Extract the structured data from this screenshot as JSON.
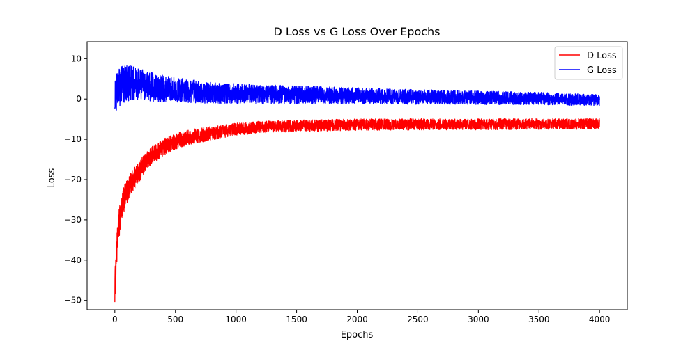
{
  "chart_data": {
    "type": "line",
    "title": "D Loss vs G Loss Over Epochs",
    "xlabel": "Epochs",
    "ylabel": "Loss",
    "xlim": [
      -229,
      4229
    ],
    "ylim": [
      -52.3,
      14.2
    ],
    "x_ticks": [
      0,
      500,
      1000,
      1500,
      2000,
      2500,
      3000,
      3500,
      4000
    ],
    "x_tick_labels": [
      "0",
      "500",
      "1000",
      "1500",
      "2000",
      "2500",
      "3000",
      "3500",
      "4000"
    ],
    "y_ticks": [
      10,
      0,
      -10,
      -20,
      -30,
      -40,
      -50
    ],
    "y_tick_labels": [
      "10",
      "0",
      "−10",
      "−20",
      "−30",
      "−40",
      "−50"
    ],
    "grid": false,
    "legend_position": "top-right",
    "epochs_range": [
      0,
      4000
    ],
    "series": [
      {
        "name": "D Loss",
        "color": "#ff0000",
        "anchors_x": [
          0,
          5,
          10,
          20,
          30,
          50,
          75,
          100,
          150,
          200,
          250,
          300,
          400,
          500,
          600,
          700,
          800,
          900,
          1000,
          1200,
          1500,
          2000,
          2500,
          3000,
          3500,
          4000
        ],
        "anchors_y": [
          -47,
          -44,
          -40,
          -36,
          -32,
          -28,
          -25,
          -23,
          -20,
          -18,
          -16,
          -14,
          -12,
          -10.5,
          -9.5,
          -9,
          -8.5,
          -8,
          -7.5,
          -7,
          -6.7,
          -6.4,
          -6.3,
          -6.3,
          -6.2,
          -6.2
        ],
        "noise": [
          {
            "x": 0,
            "amp": 4.0
          },
          {
            "x": 100,
            "amp": 3.0
          },
          {
            "x": 300,
            "amp": 2.2
          },
          {
            "x": 1000,
            "amp": 1.5
          },
          {
            "x": 4000,
            "amp": 1.3
          }
        ]
      },
      {
        "name": "G Loss",
        "color": "#0000ff",
        "anchors_x": [
          0,
          50,
          100,
          200,
          300,
          400,
          600,
          800,
          1000,
          1500,
          2000,
          2500,
          3000,
          3500,
          4000
        ],
        "anchors_y": [
          1,
          3.5,
          4,
          3.5,
          3,
          2.5,
          2,
          1.5,
          1.3,
          1,
          0.8,
          0.5,
          0.3,
          0.1,
          -0.3
        ],
        "noise": [
          {
            "x": 0,
            "amp": 5.0
          },
          {
            "x": 200,
            "amp": 4.0
          },
          {
            "x": 500,
            "amp": 3.0
          },
          {
            "x": 1000,
            "amp": 2.5
          },
          {
            "x": 2000,
            "amp": 2.0
          },
          {
            "x": 4000,
            "amp": 1.4
          }
        ]
      }
    ]
  }
}
